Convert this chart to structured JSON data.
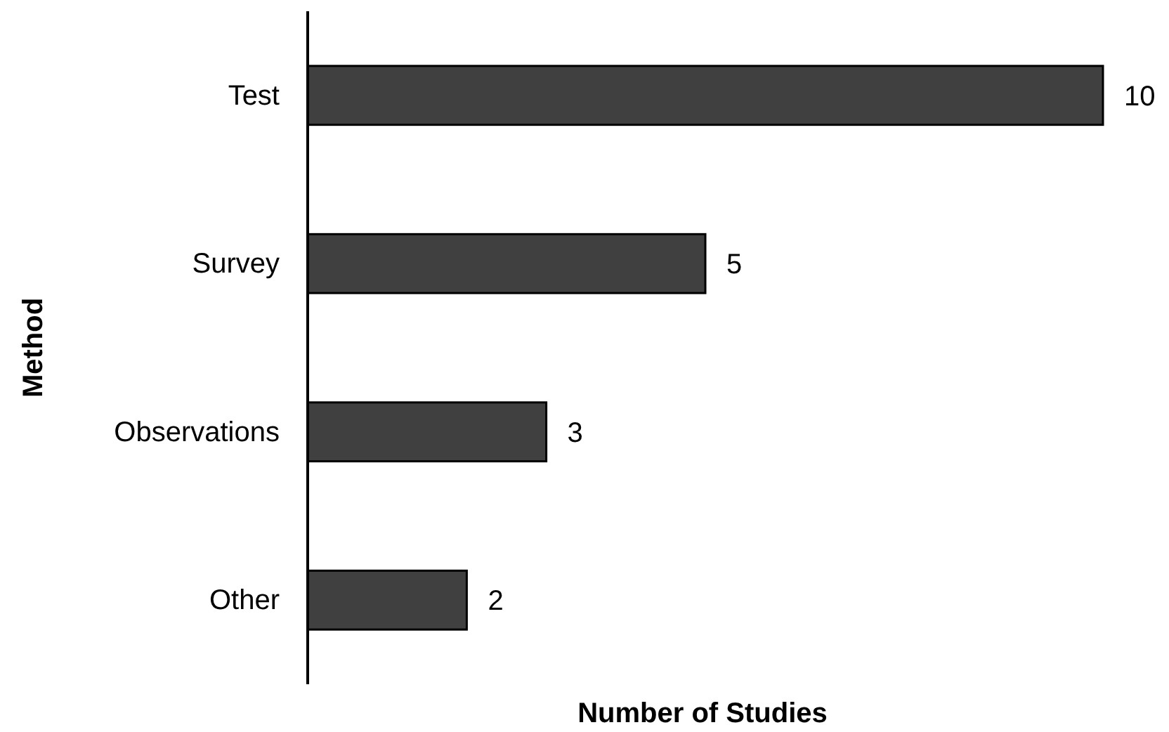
{
  "chart_data": {
    "type": "bar",
    "orientation": "horizontal",
    "xlabel": "Number of Studies",
    "ylabel": "Method",
    "categories": [
      "Test",
      "Survey",
      "Observations",
      "Other"
    ],
    "values": [
      10,
      5,
      3,
      2
    ],
    "color": "#404040",
    "data_labels": true
  }
}
